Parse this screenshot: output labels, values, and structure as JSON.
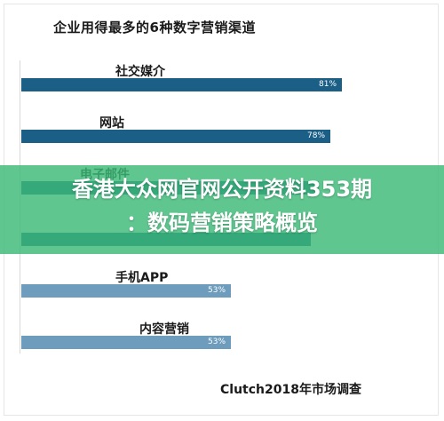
{
  "chart_data": {
    "type": "bar",
    "orientation": "horizontal",
    "title": "企业用得最多的6种数字营销渠道",
    "categories": [
      "社交媒介",
      "网站",
      "电子邮件",
      "",
      "手机APP",
      "内容营销"
    ],
    "values": [
      81,
      78,
      75,
      73,
      53,
      53
    ],
    "value_labels": [
      "81%",
      "78%",
      "",
      "",
      "53%",
      "53%"
    ],
    "xlim": [
      0,
      100
    ],
    "source": "Clutch2018年市场调查",
    "colors": [
      "#1b5f86",
      "#1b5f86",
      "#1b5f86",
      "#1b5f86",
      "#6e9cbc",
      "#6e9cbc"
    ]
  },
  "overlay": {
    "line1": "香港大众网官网公开资料353期",
    "line2": "：数码营销策略概览",
    "color": "#3cba78"
  }
}
